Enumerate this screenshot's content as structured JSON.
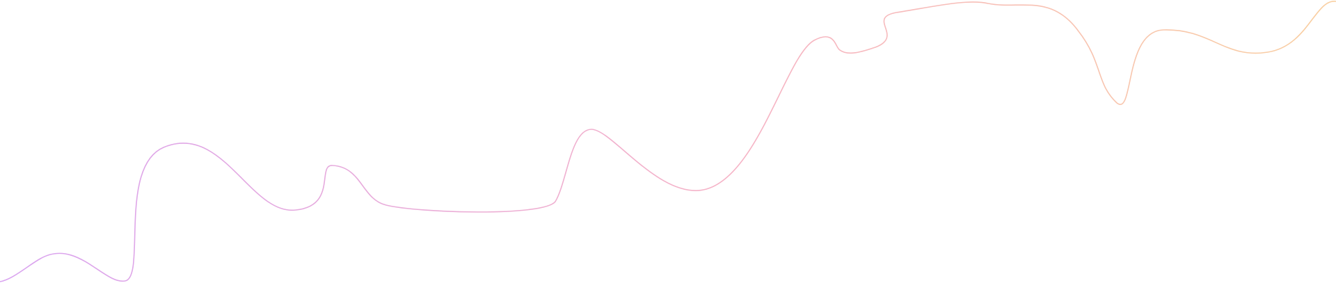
{
  "decoration": {
    "kind": "wave-line",
    "gradient": {
      "start_color": "#d9a3f0",
      "mid_color": "#f6b3c6",
      "end_color": "#f9cfa0"
    },
    "stroke_opacity": 1
  }
}
